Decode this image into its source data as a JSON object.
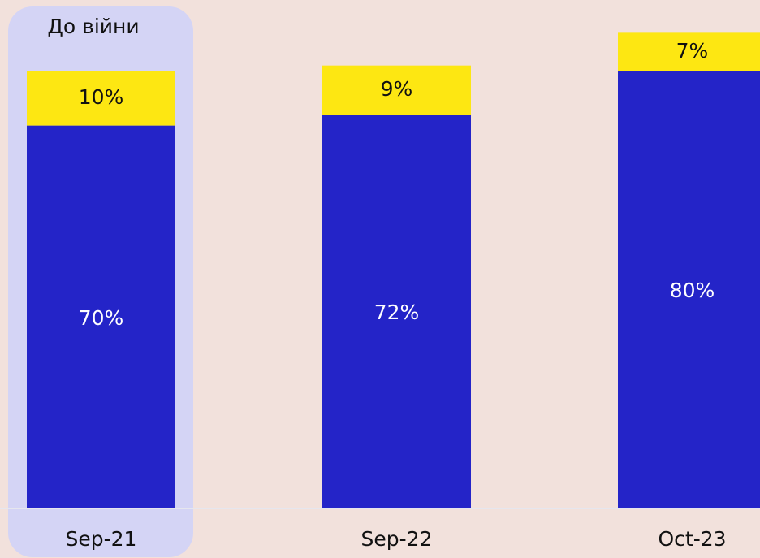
{
  "chart_data": {
    "type": "stacked_bar",
    "annotation": "До війни",
    "categories": [
      "Sep-21",
      "Sep-22",
      "Oct-23"
    ],
    "series": [
      {
        "color": "#2424c8",
        "values": [
          70,
          72,
          80
        ],
        "value_labels": [
          "70%",
          "72%",
          "80%"
        ]
      },
      {
        "color": "#fde712",
        "values": [
          10,
          9,
          7
        ],
        "value_labels": [
          "10%",
          "9%",
          "7%"
        ]
      }
    ]
  }
}
